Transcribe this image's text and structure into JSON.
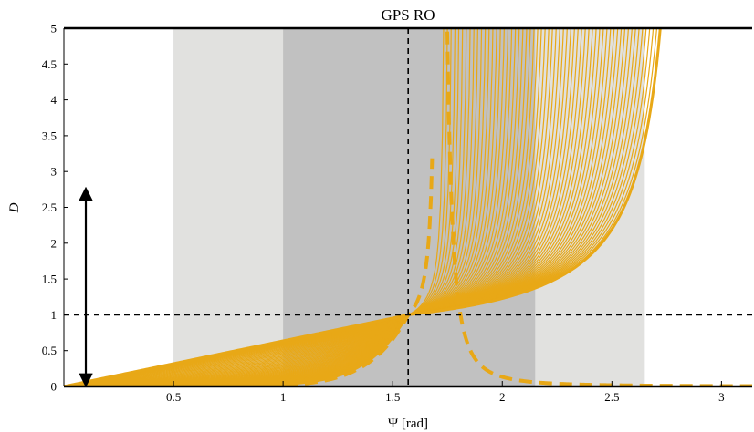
{
  "chart_data": {
    "type": "line",
    "title": "GPS RO",
    "xlabel": "Ψ [rad]",
    "ylabel": "D",
    "xlim": [
      0,
      3.14
    ],
    "ylim": [
      0,
      5
    ],
    "x_ticks": [
      0.5,
      1,
      1.5,
      2,
      2.5,
      3
    ],
    "x_tick_labels": [
      "0.5",
      "1",
      "1.5",
      "2",
      "2.5",
      "3"
    ],
    "y_ticks": [
      0,
      0.5,
      1,
      1.5,
      2,
      2.5,
      3,
      3.5,
      4,
      4.5,
      5
    ],
    "y_tick_labels": [
      "0",
      "0.5",
      "1",
      "1.5",
      "2",
      "2.5",
      "3",
      "3.5",
      "4",
      "4.5",
      "5"
    ],
    "grid": false,
    "colors": {
      "curves": "#e8a817",
      "light_band": "#e1e1df",
      "dark_band": "#c1c1c1",
      "reference_lines": "#000000"
    },
    "shaded_bands": [
      {
        "x_range": [
          0.5,
          2.65
        ],
        "shade": "light"
      },
      {
        "x_range": [
          1.0,
          2.15
        ],
        "shade": "dark"
      }
    ],
    "reference_lines": {
      "vertical_x": 1.5708,
      "horizontal_y": 1
    },
    "arrow": {
      "x": 0.1,
      "y_from": 0,
      "y_to": 2.75,
      "direction": "both"
    },
    "curve_family": {
      "count": 60,
      "line_style": "solid",
      "parameter_range": [
        0.02,
        1.0
      ],
      "max_curve": {
        "y_at_0": 0,
        "y_at_pi_over_2": 1,
        "asymptote_x": 2.85,
        "style": "solid-thick"
      },
      "lower_envelope": {
        "style": "dashed-thick",
        "asymptote_x": 1.7,
        "tail_value_at_pi": 0.0
      }
    }
  }
}
